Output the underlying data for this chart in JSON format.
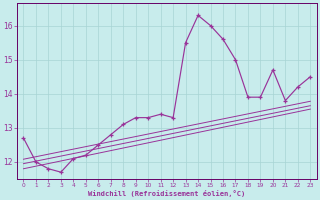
{
  "background_color": "#c8ecec",
  "grid_color": "#a8d4d4",
  "line_color": "#993399",
  "spine_color": "#660066",
  "xlim": [
    -0.5,
    23.5
  ],
  "ylim": [
    11.5,
    16.65
  ],
  "xtick_vals": [
    0,
    1,
    2,
    3,
    4,
    5,
    6,
    7,
    8,
    9,
    10,
    11,
    12,
    13,
    14,
    15,
    16,
    17,
    18,
    19,
    20,
    21,
    22,
    23
  ],
  "ytick_vals": [
    12,
    13,
    14,
    15,
    16
  ],
  "xlabel": "Windchill (Refroidissement éolien,°C)",
  "hours": [
    0,
    1,
    2,
    3,
    4,
    5,
    6,
    7,
    8,
    9,
    10,
    11,
    12,
    13,
    14,
    15,
    16,
    17,
    18,
    19,
    20,
    21,
    22,
    23
  ],
  "temps": [
    12.7,
    12.0,
    11.8,
    11.7,
    12.1,
    12.2,
    12.5,
    12.8,
    13.1,
    13.3,
    13.3,
    13.4,
    13.3,
    15.5,
    16.3,
    16.0,
    15.6,
    15.0,
    13.9,
    13.9,
    14.7,
    13.8,
    14.2,
    14.5
  ],
  "trend1_x": [
    0,
    23
  ],
  "trend1_y": [
    11.8,
    13.55
  ],
  "trend2_x": [
    0,
    23
  ],
  "trend2_y": [
    11.95,
    13.65
  ],
  "trend3_x": [
    0,
    23
  ],
  "trend3_y": [
    12.08,
    13.78
  ]
}
